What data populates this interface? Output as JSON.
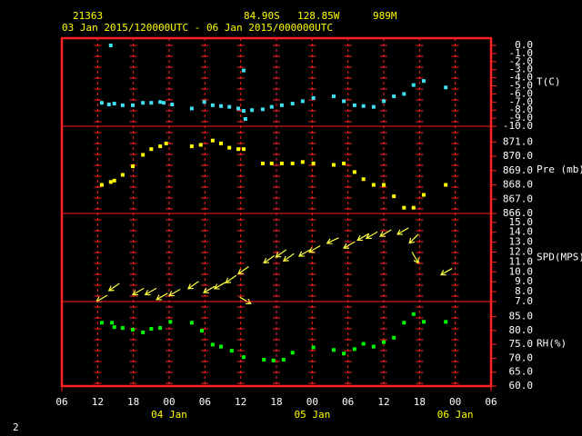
{
  "header": {
    "station": "21363",
    "latitude": "84.90S",
    "longitude": "128.85W",
    "elevation": "989M",
    "period": "03 Jan 2015/120000UTC - 06 Jan 2015/000000UTC"
  },
  "page_number": "2",
  "x_axis": {
    "xlim": [
      0,
      72
    ],
    "xticks": [
      {
        "value": 0,
        "label": "06"
      },
      {
        "value": 6,
        "label": "12"
      },
      {
        "value": 12,
        "label": "18"
      },
      {
        "value": 18,
        "label": "00"
      },
      {
        "value": 24,
        "label": "06"
      },
      {
        "value": 30,
        "label": "12"
      },
      {
        "value": 36,
        "label": "18"
      },
      {
        "value": 42,
        "label": "00"
      },
      {
        "value": 48,
        "label": "06"
      },
      {
        "value": 54,
        "label": "12"
      },
      {
        "value": 60,
        "label": "18"
      },
      {
        "value": 66,
        "label": "00"
      },
      {
        "value": 72,
        "label": "06"
      }
    ],
    "date_labels": [
      {
        "value": 18,
        "label": "04 Jan"
      },
      {
        "value": 42,
        "label": "05 Jan"
      },
      {
        "value": 66,
        "label": "06 Jan"
      }
    ]
  },
  "chart_data": [
    {
      "type": "scatter",
      "label": "T(C)",
      "color": "#40e0f0",
      "ylim": [
        -10,
        0.9
      ],
      "yticks": [
        {
          "value": 0,
          "label": "0.0"
        },
        {
          "value": -1,
          "label": "-1.0"
        },
        {
          "value": -2,
          "label": "-2.0"
        },
        {
          "value": -3,
          "label": "-3.0"
        },
        {
          "value": -4,
          "label": "-4.0"
        },
        {
          "value": -5,
          "label": "-5.0"
        },
        {
          "value": -6,
          "label": "-6.0"
        },
        {
          "value": -7,
          "label": "-7.0"
        },
        {
          "value": -8,
          "label": "-8.0"
        },
        {
          "value": -9,
          "label": "-9.0"
        },
        {
          "value": -10,
          "label": "-10.0"
        }
      ],
      "x": [
        6.7,
        7.9,
        8.2,
        8.8,
        10.2,
        11.9,
        13.6,
        15.0,
        16.5,
        17.1,
        18.5,
        21.8,
        23.9,
        25.3,
        26.7,
        28.1,
        29.6,
        30.5,
        30.5,
        30.8,
        31.9,
        33.7,
        35.2,
        36.9,
        38.7,
        40.4,
        42.2,
        45.6,
        47.3,
        49.1,
        50.6,
        52.3,
        54.0,
        55.7,
        57.4,
        59.0,
        60.7,
        64.4
      ],
      "values": [
        -7.1,
        -7.3,
        0.0,
        -7.2,
        -7.4,
        -7.4,
        -7.1,
        -7.1,
        -7.0,
        -7.1,
        -7.3,
        -7.8,
        -7.0,
        -7.4,
        -7.5,
        -7.6,
        -7.8,
        -8.1,
        -3.1,
        -9.1,
        -8.0,
        -7.9,
        -7.6,
        -7.4,
        -7.2,
        -6.9,
        -6.5,
        -6.3,
        -6.9,
        -7.4,
        -7.5,
        -7.6,
        -6.9,
        -6.3,
        -6.0,
        -4.9,
        -4.4,
        -5.2
      ]
    },
    {
      "type": "scatter",
      "label": "Pre (mb)",
      "color": "#ffff00",
      "ylim": [
        866,
        872.1
      ],
      "yticks": [
        {
          "value": 871,
          "label": "871.0"
        },
        {
          "value": 870,
          "label": "870.0"
        },
        {
          "value": 869,
          "label": "869.0"
        },
        {
          "value": 868,
          "label": "868.0"
        },
        {
          "value": 867,
          "label": "867.0"
        },
        {
          "value": 866,
          "label": "866.0"
        }
      ],
      "x": [
        6.7,
        8.2,
        8.8,
        10.2,
        11.9,
        13.6,
        15.0,
        16.5,
        17.5,
        21.8,
        23.3,
        25.3,
        26.7,
        28.1,
        29.6,
        30.5,
        33.7,
        35.2,
        36.9,
        38.7,
        40.4,
        42.2,
        45.6,
        47.3,
        49.1,
        50.6,
        52.3,
        54.0,
        55.7,
        57.4,
        59.0,
        60.7,
        64.4
      ],
      "values": [
        868.0,
        868.2,
        868.3,
        868.7,
        869.3,
        870.1,
        870.5,
        870.7,
        870.9,
        870.7,
        870.8,
        871.1,
        870.9,
        870.6,
        870.5,
        870.5,
        869.5,
        869.5,
        869.5,
        869.5,
        869.6,
        869.5,
        869.4,
        869.5,
        868.9,
        868.4,
        868.0,
        868.0,
        867.2,
        866.4,
        866.4,
        867.3,
        868.0
      ]
    },
    {
      "type": "wind",
      "label": "SPD(MPS)",
      "color": "#ffff40",
      "ylim": [
        7,
        15.9
      ],
      "yticks": [
        {
          "value": 15,
          "label": "15.0"
        },
        {
          "value": 14,
          "label": "14.0"
        },
        {
          "value": 13,
          "label": "13.0"
        },
        {
          "value": 12,
          "label": "12.0"
        },
        {
          "value": 11,
          "label": "11.0"
        },
        {
          "value": 10,
          "label": "10.0"
        },
        {
          "value": 9,
          "label": "9.0"
        },
        {
          "value": 8,
          "label": "8.0"
        },
        {
          "value": 7,
          "label": "7.0"
        }
      ],
      "x": [
        5.8,
        7.9,
        11.9,
        14.0,
        15.9,
        18.0,
        21.2,
        23.8,
        25.6,
        27.5,
        29.6,
        31.7,
        33.9,
        35.9,
        37.2,
        39.8,
        41.5,
        44.5,
        47.3,
        49.6,
        51.1,
        53.4,
        56.3,
        58.3,
        59.8,
        63.6
      ],
      "values": [
        7.0,
        8.1,
        7.7,
        7.7,
        7.2,
        7.6,
        8.3,
        7.9,
        8.3,
        8.9,
        9.8,
        6.8,
        10.9,
        11.5,
        11.1,
        11.6,
        12.0,
        12.9,
        12.4,
        13.2,
        13.4,
        13.6,
        13.8,
        12.9,
        10.9,
        9.7
      ],
      "directions": [
        60,
        55,
        60,
        60,
        60,
        60,
        55,
        60,
        60,
        55,
        55,
        300,
        55,
        55,
        55,
        60,
        60,
        65,
        60,
        60,
        60,
        60,
        60,
        45,
        330,
        60
      ]
    },
    {
      "type": "scatter",
      "label": "RH(%)",
      "color": "#00ff00",
      "ylim": [
        60,
        90.4
      ],
      "yticks": [
        {
          "value": 85,
          "label": "85.0"
        },
        {
          "value": 80,
          "label": "80.0"
        },
        {
          "value": 75,
          "label": "75.0"
        },
        {
          "value": 70,
          "label": "70.0"
        },
        {
          "value": 65,
          "label": "65.0"
        },
        {
          "value": 60,
          "label": "60.0"
        }
      ],
      "x": [
        6.7,
        8.4,
        8.8,
        10.2,
        11.9,
        13.6,
        15.0,
        16.5,
        18.2,
        21.8,
        23.5,
        25.3,
        26.7,
        28.5,
        30.5,
        33.9,
        35.5,
        37.2,
        38.7,
        42.2,
        45.6,
        47.3,
        49.1,
        50.6,
        52.3,
        54.0,
        55.7,
        57.4,
        59.0,
        60.7,
        64.4
      ],
      "values": [
        82.8,
        82.8,
        81.2,
        80.9,
        80.3,
        79.3,
        80.6,
        80.9,
        83.1,
        82.8,
        79.9,
        74.9,
        74.2,
        72.7,
        70.4,
        69.5,
        69.2,
        69.5,
        72.0,
        73.9,
        73.0,
        71.7,
        73.3,
        75.2,
        74.2,
        75.8,
        77.4,
        82.8,
        85.9,
        83.1,
        83.1
      ]
    }
  ]
}
